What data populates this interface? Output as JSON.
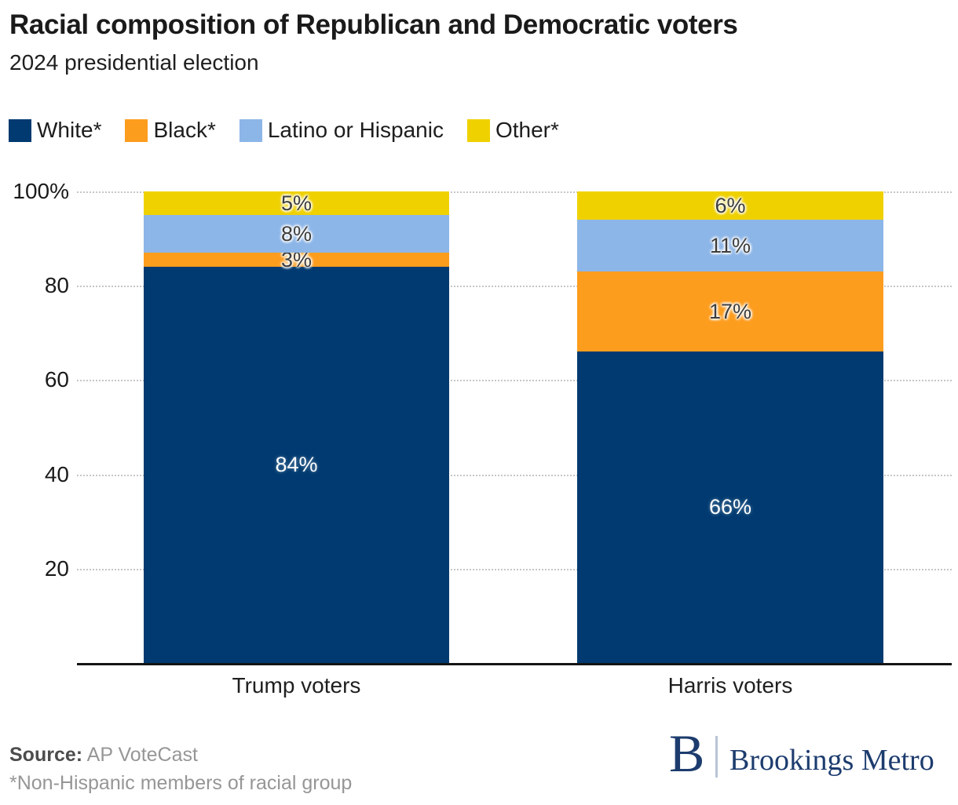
{
  "header": {
    "title": "Racial composition of Republican and Democratic voters",
    "subtitle": "2024 presidential election"
  },
  "chart_data": {
    "type": "bar",
    "stacked": true,
    "title": "Racial composition of Republican and Democratic voters",
    "subtitle": "2024 presidential election",
    "categories": [
      "Trump voters",
      "Harris voters"
    ],
    "series": [
      {
        "name": "White*",
        "color": "#003a70",
        "values": [
          84,
          66
        ],
        "labels": [
          "84%",
          "66%"
        ],
        "label_style": "light"
      },
      {
        "name": "Black*",
        "color": "#fd9d1e",
        "values": [
          3,
          17
        ],
        "labels": [
          "3%",
          "17%"
        ],
        "label_style": "dark"
      },
      {
        "name": "Latino or Hispanic",
        "color": "#8db6e8",
        "values": [
          8,
          11
        ],
        "labels": [
          "8%",
          "11%"
        ],
        "label_style": "dark"
      },
      {
        "name": "Other*",
        "color": "#efd100",
        "values": [
          5,
          6
        ],
        "labels": [
          "5%",
          "6%"
        ],
        "label_style": "dark"
      }
    ],
    "ylim": [
      0,
      100
    ],
    "yticks": [
      {
        "value": 100,
        "label": "100%"
      },
      {
        "value": 80,
        "label": "80"
      },
      {
        "value": 60,
        "label": "60"
      },
      {
        "value": 40,
        "label": "40"
      },
      {
        "value": 20,
        "label": "20"
      }
    ],
    "grid": "horizontal-dotted",
    "legend_position": "top-left"
  },
  "footer": {
    "source_label": "Source:",
    "source_value": " AP VoteCast",
    "note": "*Non-Hispanic members of racial group",
    "logo": {
      "monogram": "B",
      "name": "Brookings Metro",
      "color": "#1d3c6e"
    }
  }
}
